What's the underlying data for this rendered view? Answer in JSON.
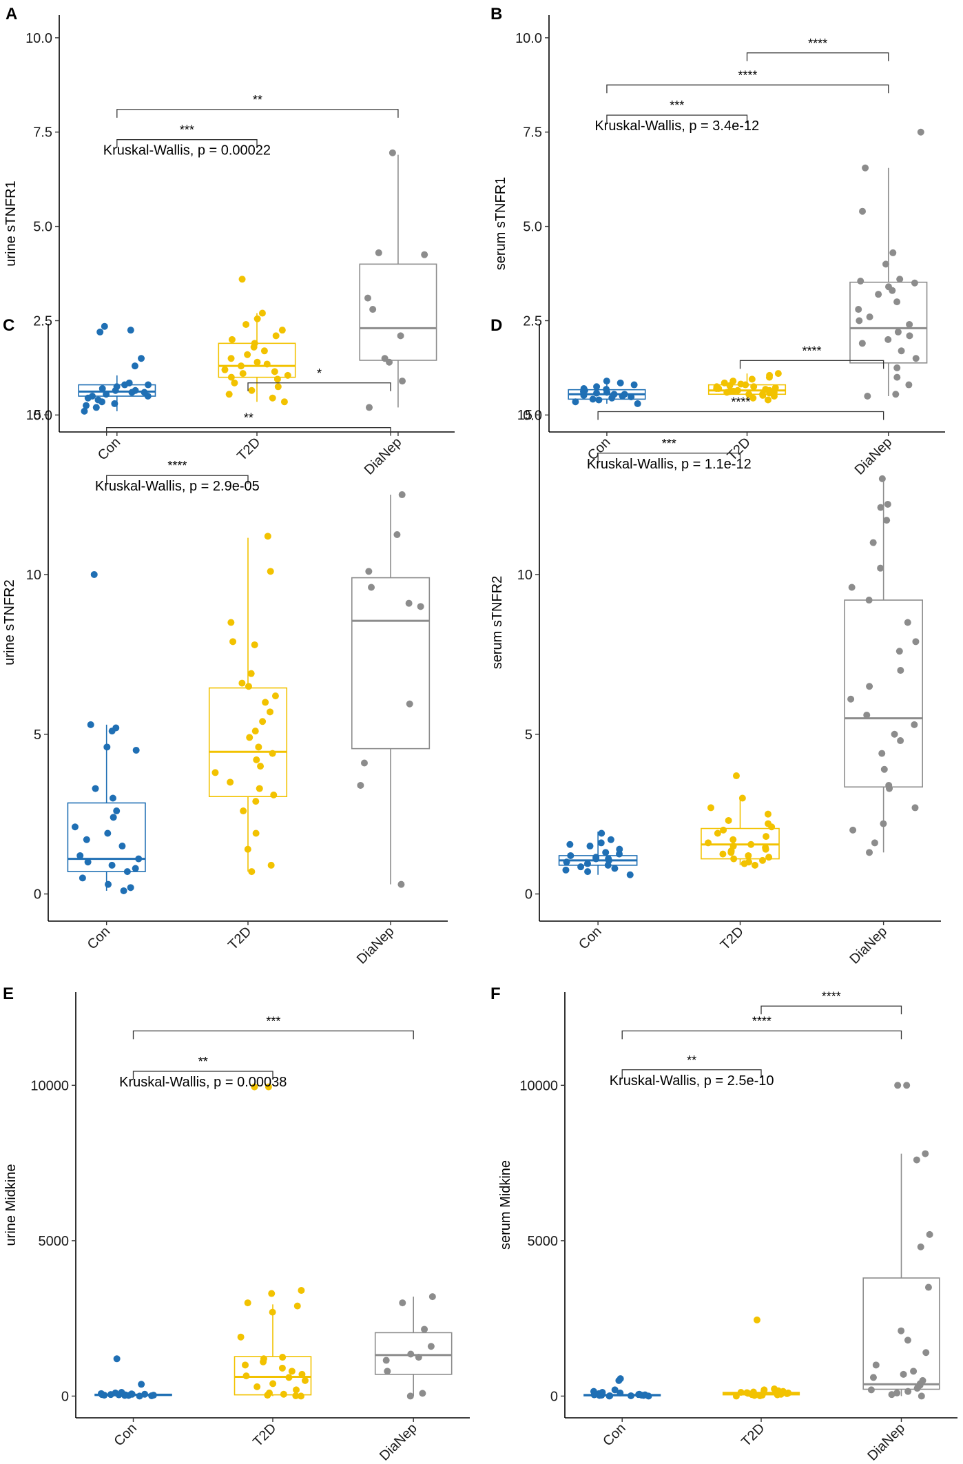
{
  "colors": {
    "Con": "#1f6fb4",
    "T2D": "#f2c200",
    "DiaNep": "#8c8c8c"
  },
  "chart_data": [
    {
      "panel": "A",
      "type": "box",
      "ylabel": "urine sTNFR1",
      "categories": [
        "Con",
        "T2D",
        "DiaNep"
      ],
      "yticks": [
        0.0,
        2.5,
        5.0,
        7.5,
        10.0
      ],
      "yticklabels": [
        "0.0",
        "2.5",
        "5.0",
        "7.5",
        "10.0"
      ],
      "ylim": [
        -0.45,
        10.6
      ],
      "kruskal": "Kruskal-Wallis, p = 0.00022",
      "comparisons": [
        {
          "from": "Con",
          "to": "T2D",
          "label": "***",
          "y": 7.3
        },
        {
          "from": "Con",
          "to": "DiaNep",
          "label": "**",
          "y": 8.1
        }
      ],
      "groups": [
        {
          "name": "Con",
          "box": {
            "q1": 0.5,
            "median": 0.62,
            "q3": 0.8,
            "lo": 0.1,
            "hi": 1.05
          },
          "points": [
            0.1,
            0.2,
            0.25,
            0.35,
            0.4,
            0.45,
            0.5,
            0.5,
            0.55,
            0.6,
            0.6,
            0.65,
            0.65,
            0.7,
            0.75,
            0.8,
            0.8,
            0.85,
            1.3,
            1.5,
            2.2,
            2.25,
            2.35,
            0.3
          ]
        },
        {
          "name": "T2D",
          "box": {
            "q1": 1.0,
            "median": 1.3,
            "q3": 1.9,
            "lo": 0.35,
            "hi": 2.7
          },
          "points": [
            0.35,
            0.45,
            0.55,
            0.65,
            0.75,
            0.85,
            0.95,
            1.0,
            1.05,
            1.1,
            1.15,
            1.2,
            1.3,
            1.35,
            1.4,
            1.5,
            1.6,
            1.7,
            1.8,
            1.9,
            2.0,
            2.1,
            2.25,
            2.4,
            2.55,
            2.7,
            3.6
          ]
        },
        {
          "name": "DiaNep",
          "box": {
            "q1": 1.45,
            "median": 2.3,
            "q3": 4.0,
            "lo": 0.2,
            "hi": 6.9
          },
          "points": [
            0.2,
            0.9,
            1.4,
            1.5,
            2.1,
            2.8,
            3.1,
            4.25,
            4.3,
            6.95
          ]
        }
      ]
    },
    {
      "panel": "B",
      "type": "box",
      "ylabel": "serum sTNFR1",
      "categories": [
        "Con",
        "T2D",
        "DiaNep"
      ],
      "yticks": [
        0.0,
        2.5,
        5.0,
        7.5,
        10.0
      ],
      "yticklabels": [
        "0.0",
        "2.5",
        "5.0",
        "7.5",
        "10.0"
      ],
      "ylim": [
        -0.45,
        10.6
      ],
      "kruskal": "Kruskal-Wallis, p = 3.4e-12",
      "comparisons": [
        {
          "from": "Con",
          "to": "T2D",
          "label": "***",
          "y": 7.95
        },
        {
          "from": "Con",
          "to": "DiaNep",
          "label": "****",
          "y": 8.75
        },
        {
          "from": "T2D",
          "to": "DiaNep",
          "label": "****",
          "y": 9.6
        }
      ],
      "groups": [
        {
          "name": "Con",
          "box": {
            "q1": 0.42,
            "median": 0.55,
            "q3": 0.67,
            "lo": 0.3,
            "hi": 0.95
          },
          "points": [
            0.3,
            0.35,
            0.4,
            0.42,
            0.45,
            0.48,
            0.5,
            0.52,
            0.55,
            0.55,
            0.58,
            0.6,
            0.62,
            0.65,
            0.68,
            0.7,
            0.75,
            0.8,
            0.85,
            0.9
          ]
        },
        {
          "name": "T2D",
          "box": {
            "q1": 0.55,
            "median": 0.65,
            "q3": 0.8,
            "lo": 0.4,
            "hi": 1.1
          },
          "points": [
            0.4,
            0.45,
            0.5,
            0.52,
            0.55,
            0.55,
            0.58,
            0.6,
            0.62,
            0.63,
            0.65,
            0.65,
            0.68,
            0.7,
            0.72,
            0.75,
            0.78,
            0.8,
            0.82,
            0.85,
            0.9,
            0.95,
            1.0,
            1.05,
            1.1,
            0.6,
            0.7,
            0.75
          ]
        },
        {
          "name": "DiaNep",
          "box": {
            "q1": 1.38,
            "median": 2.3,
            "q3": 3.52,
            "lo": 0.5,
            "hi": 6.55
          },
          "points": [
            0.5,
            0.55,
            0.8,
            1.0,
            1.25,
            1.5,
            1.7,
            1.9,
            2.0,
            2.1,
            2.2,
            2.4,
            2.5,
            2.6,
            2.8,
            3.0,
            3.2,
            3.3,
            3.4,
            3.5,
            3.6,
            3.55,
            4.0,
            4.3,
            5.4,
            6.55,
            7.5
          ]
        }
      ]
    },
    {
      "panel": "C",
      "type": "box",
      "ylabel": "urine sTNFR2",
      "categories": [
        "Con",
        "T2D",
        "DiaNep"
      ],
      "yticks": [
        0,
        5,
        10,
        15
      ],
      "yticklabels": [
        "0",
        "5",
        "10",
        "15"
      ],
      "ylim": [
        -0.85,
        17.85
      ],
      "kruskal": "Kruskal-Wallis, p = 2.9e-05",
      "comparisons": [
        {
          "from": "Con",
          "to": "T2D",
          "label": "****",
          "y": 13.1
        },
        {
          "from": "Con",
          "to": "DiaNep",
          "label": "**",
          "y": 14.6
        },
        {
          "from": "T2D",
          "to": "DiaNep",
          "label": "*",
          "y": 16.0
        }
      ],
      "groups": [
        {
          "name": "Con",
          "box": {
            "q1": 0.7,
            "median": 1.1,
            "q3": 2.85,
            "lo": 0.1,
            "hi": 5.3
          },
          "points": [
            0.1,
            0.2,
            0.3,
            0.5,
            0.7,
            0.8,
            0.9,
            1.0,
            1.1,
            1.2,
            1.5,
            1.7,
            1.9,
            2.1,
            2.4,
            2.6,
            3.0,
            3.3,
            4.5,
            4.6,
            5.1,
            5.2,
            5.3,
            10.0
          ]
        },
        {
          "name": "T2D",
          "box": {
            "q1": 3.05,
            "median": 4.45,
            "q3": 6.45,
            "lo": 0.7,
            "hi": 11.15
          },
          "points": [
            0.7,
            0.9,
            1.4,
            1.9,
            2.6,
            2.9,
            3.1,
            3.3,
            3.5,
            3.8,
            4.0,
            4.2,
            4.4,
            4.6,
            4.9,
            5.1,
            5.4,
            5.7,
            6.0,
            6.2,
            6.5,
            6.6,
            6.9,
            7.8,
            7.9,
            8.5,
            10.1,
            11.2
          ]
        },
        {
          "name": "DiaNep",
          "box": {
            "q1": 4.55,
            "median": 8.55,
            "q3": 9.9,
            "lo": 0.3,
            "hi": 12.5
          },
          "points": [
            0.3,
            3.4,
            4.1,
            5.95,
            9.0,
            9.1,
            9.6,
            10.1,
            11.25,
            12.5
          ]
        }
      ]
    },
    {
      "panel": "D",
      "type": "box",
      "ylabel": "serum sTNFR2",
      "categories": [
        "Con",
        "T2D",
        "DiaNep"
      ],
      "yticks": [
        0,
        5,
        10,
        15
      ],
      "yticklabels": [
        "0",
        "5",
        "10",
        "15"
      ],
      "ylim": [
        -0.85,
        17.85
      ],
      "kruskal": "Kruskal-Wallis, p = 1.1e-12",
      "comparisons": [
        {
          "from": "Con",
          "to": "T2D",
          "label": "***",
          "y": 13.8
        },
        {
          "from": "Con",
          "to": "DiaNep",
          "label": "****",
          "y": 15.1
        },
        {
          "from": "T2D",
          "to": "DiaNep",
          "label": "****",
          "y": 16.7
        }
      ],
      "groups": [
        {
          "name": "Con",
          "box": {
            "q1": 0.9,
            "median": 1.05,
            "q3": 1.2,
            "lo": 0.6,
            "hi": 1.95
          },
          "points": [
            0.6,
            0.7,
            0.75,
            0.8,
            0.85,
            0.9,
            0.95,
            1.0,
            1.05,
            1.1,
            1.1,
            1.15,
            1.2,
            1.25,
            1.3,
            1.4,
            1.5,
            1.55,
            1.6,
            1.7,
            1.9
          ]
        },
        {
          "name": "T2D",
          "box": {
            "q1": 1.1,
            "median": 1.55,
            "q3": 2.05,
            "lo": 0.9,
            "hi": 3.0
          },
          "points": [
            0.9,
            0.95,
            1.0,
            1.05,
            1.1,
            1.15,
            1.2,
            1.25,
            1.3,
            1.35,
            1.4,
            1.45,
            1.5,
            1.55,
            1.6,
            1.7,
            1.8,
            1.9,
            2.0,
            2.1,
            2.2,
            2.3,
            2.5,
            2.7,
            3.0,
            3.7
          ]
        },
        {
          "name": "DiaNep",
          "box": {
            "q1": 3.35,
            "median": 5.5,
            "q3": 9.2,
            "lo": 1.3,
            "hi": 12.9
          },
          "points": [
            1.3,
            1.6,
            2.0,
            2.2,
            2.7,
            3.3,
            3.4,
            3.9,
            4.4,
            4.8,
            5.0,
            5.3,
            5.6,
            6.1,
            6.5,
            7.0,
            7.6,
            7.9,
            8.5,
            9.2,
            9.6,
            10.2,
            11.0,
            11.7,
            12.1,
            12.2,
            13.0
          ]
        }
      ]
    },
    {
      "panel": "E",
      "type": "box",
      "ylabel": "urine Midkine",
      "categories": [
        "Con",
        "T2D",
        "DiaNep"
      ],
      "yticks": [
        0,
        5000,
        10000
      ],
      "yticklabels": [
        "0",
        "5000",
        "10000"
      ],
      "ylim": [
        -700,
        13000
      ],
      "kruskal": "Kruskal-Wallis, p = 0.00038",
      "comparisons": [
        {
          "from": "Con",
          "to": "T2D",
          "label": "**",
          "y": 10450
        },
        {
          "from": "Con",
          "to": "DiaNep",
          "label": "***",
          "y": 11750
        }
      ],
      "groups": [
        {
          "name": "Con",
          "box": {
            "q1": 20,
            "median": 40,
            "q3": 60,
            "lo": 0,
            "hi": 120
          },
          "points": [
            0,
            10,
            20,
            20,
            30,
            30,
            40,
            40,
            50,
            50,
            60,
            60,
            70,
            80,
            100,
            120,
            380,
            1200
          ]
        },
        {
          "name": "T2D",
          "box": {
            "q1": 40,
            "median": 620,
            "q3": 1270,
            "lo": 0,
            "hi": 2950
          },
          "points": [
            0,
            10,
            30,
            60,
            100,
            200,
            300,
            400,
            500,
            600,
            650,
            700,
            800,
            900,
            1000,
            1100,
            1200,
            1250,
            1900,
            2700,
            2900,
            3000,
            3300,
            3400,
            9950,
            9950
          ]
        },
        {
          "name": "DiaNep",
          "box": {
            "q1": 700,
            "median": 1320,
            "q3": 2040,
            "lo": 0,
            "hi": 3200
          },
          "points": [
            0,
            90,
            800,
            1150,
            1250,
            1350,
            1600,
            2150,
            3000,
            3200
          ]
        }
      ]
    },
    {
      "panel": "F",
      "type": "box",
      "ylabel": "serum Midkine",
      "categories": [
        "Con",
        "T2D",
        "DiaNep"
      ],
      "yticks": [
        0,
        5000,
        10000
      ],
      "yticklabels": [
        "0",
        "5000",
        "10000"
      ],
      "ylim": [
        -700,
        13000
      ],
      "kruskal": "Kruskal-Wallis, p = 2.5e-10",
      "comparisons": [
        {
          "from": "Con",
          "to": "T2D",
          "label": "**",
          "y": 10500
        },
        {
          "from": "Con",
          "to": "DiaNep",
          "label": "****",
          "y": 11750
        },
        {
          "from": "T2D",
          "to": "DiaNep",
          "label": "****",
          "y": 12550
        }
      ],
      "groups": [
        {
          "name": "Con",
          "box": {
            "q1": 10,
            "median": 30,
            "q3": 50,
            "lo": 0,
            "hi": 120
          },
          "points": [
            0,
            0,
            10,
            10,
            20,
            20,
            30,
            30,
            40,
            40,
            50,
            60,
            80,
            100,
            120,
            150,
            200,
            500,
            560
          ]
        },
        {
          "name": "T2D",
          "box": {
            "q1": 40,
            "median": 80,
            "q3": 120,
            "lo": 0,
            "hi": 200
          },
          "points": [
            0,
            10,
            20,
            30,
            40,
            50,
            60,
            70,
            80,
            90,
            100,
            110,
            120,
            130,
            150,
            170,
            200,
            230,
            2450
          ]
        },
        {
          "name": "DiaNep",
          "box": {
            "q1": 220,
            "median": 380,
            "q3": 3800,
            "lo": 0,
            "hi": 7800
          },
          "points": [
            0,
            50,
            100,
            150,
            200,
            250,
            300,
            350,
            400,
            500,
            600,
            700,
            800,
            1000,
            1400,
            1800,
            2100,
            3500,
            4800,
            5200,
            7600,
            7800,
            10000,
            10000
          ]
        }
      ]
    }
  ]
}
